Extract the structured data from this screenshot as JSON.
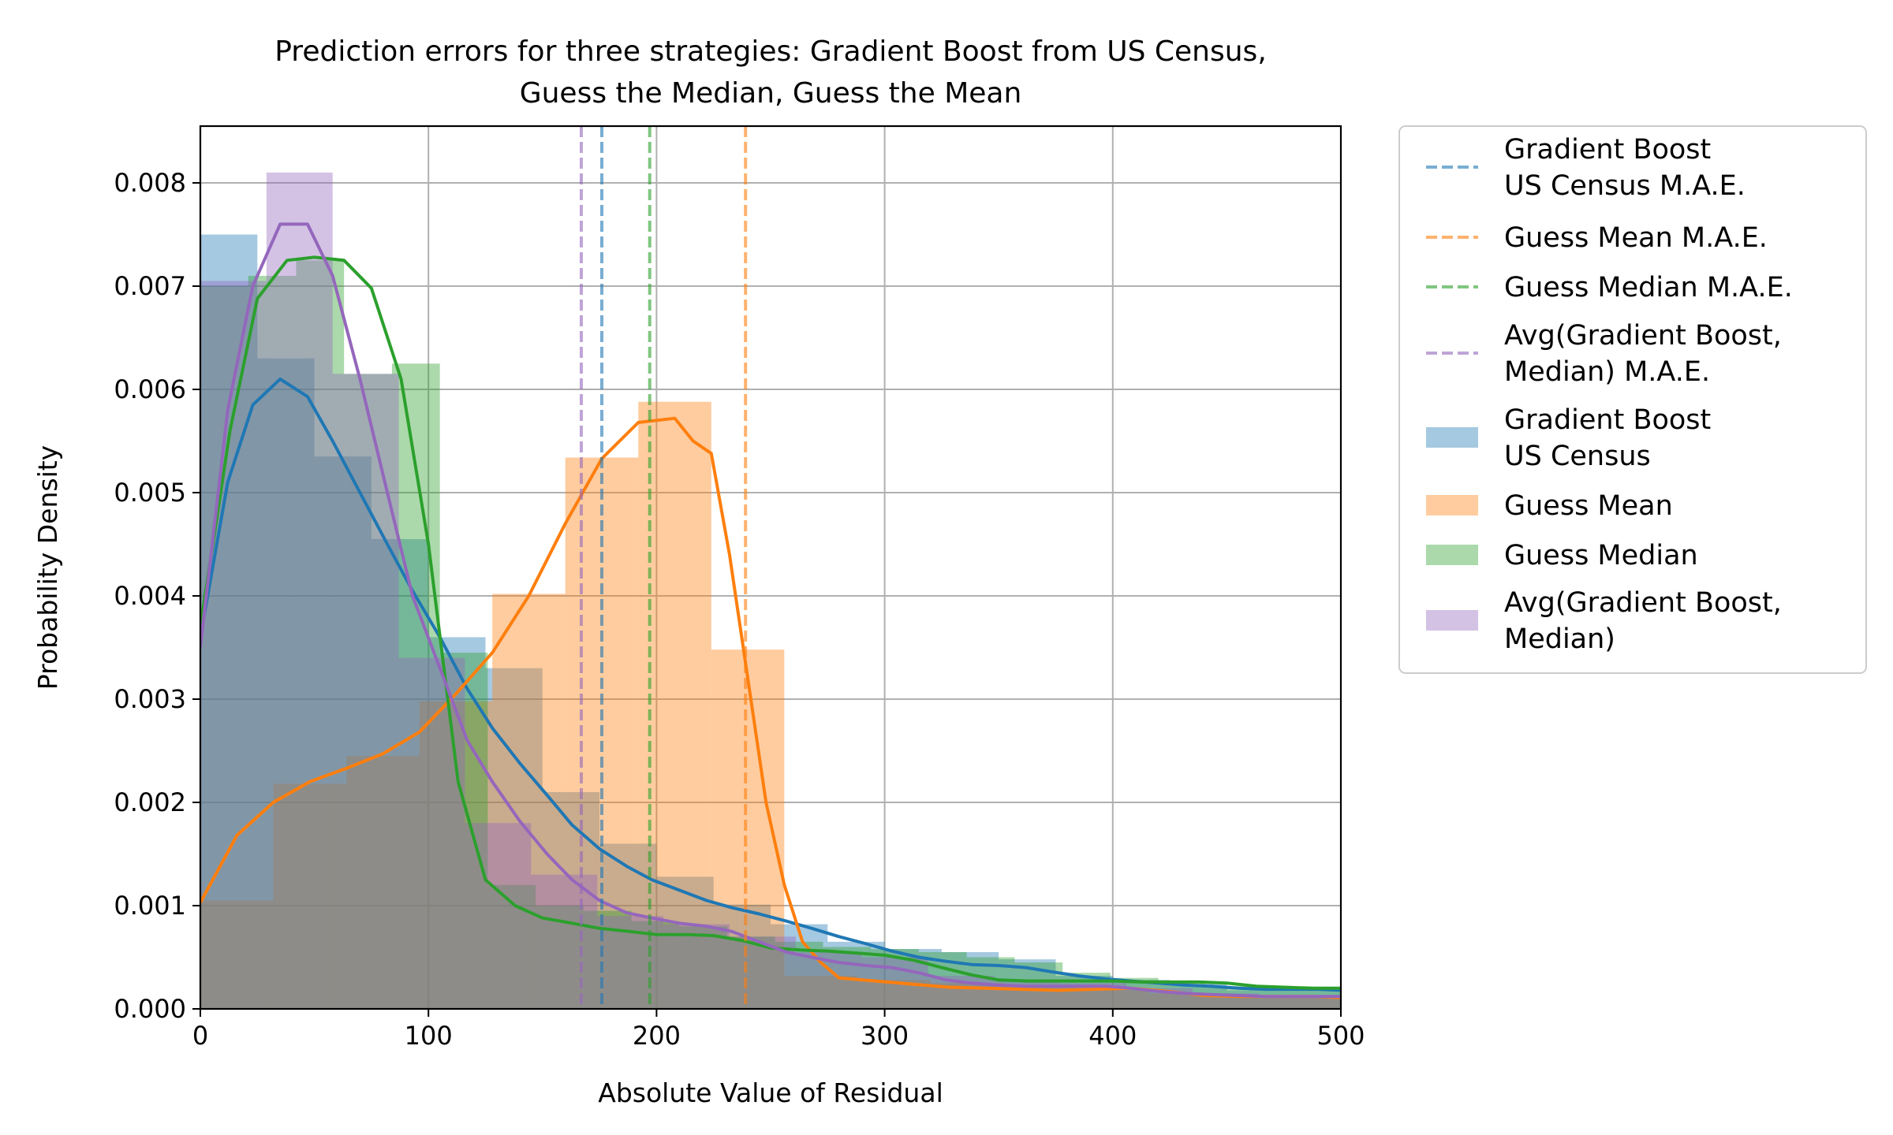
{
  "chart_data": {
    "type": "histogram",
    "title_line1": "Prediction errors for three strategies: Gradient Boost from US Census,",
    "title_line2": "Guess the Median, Guess the Mean",
    "xlabel": "Absolute Value of Residual",
    "ylabel": "Probability Density",
    "xlim": [
      0,
      500
    ],
    "ylim": [
      0,
      0.00855
    ],
    "xticks": [
      0,
      100,
      200,
      300,
      400,
      500
    ],
    "xtick_labels": [
      "0",
      "100",
      "200",
      "300",
      "400",
      "500"
    ],
    "yticks": [
      0,
      0.001,
      0.002,
      0.003,
      0.004,
      0.005,
      0.006,
      0.007,
      0.008
    ],
    "ytick_labels": [
      "0.000",
      "0.001",
      "0.002",
      "0.003",
      "0.004",
      "0.005",
      "0.006",
      "0.007",
      "0.008"
    ],
    "grid": true,
    "legend_position": "outside right",
    "colors": {
      "gradient_boost": "#1f77b4",
      "guess_mean": "#ff7f0e",
      "guess_median": "#2ca02c",
      "avg": "#9467bd"
    },
    "mae_lines": [
      {
        "series": "gradient_boost",
        "x": 176
      },
      {
        "series": "guess_mean",
        "x": 239
      },
      {
        "series": "guess_median",
        "x": 197
      },
      {
        "series": "avg",
        "x": 167
      }
    ],
    "histograms": [
      {
        "series": "gradient_boost",
        "edges": [
          0,
          25,
          50,
          75,
          100,
          125,
          150,
          175,
          200,
          225,
          250,
          275,
          300,
          325,
          350,
          375,
          400,
          425,
          450,
          475,
          500
        ],
        "values": [
          0.0075,
          0.0063,
          0.00535,
          0.00455,
          0.0036,
          0.0033,
          0.0021,
          0.0016,
          0.00128,
          0.00101,
          0.00082,
          0.00065,
          0.00058,
          0.00055,
          0.00048,
          0.00032,
          0.00028,
          0.00024,
          0.00018,
          0.0002
        ]
      },
      {
        "series": "guess_mean",
        "edges": [
          0,
          32,
          64,
          96,
          128,
          160,
          192,
          224,
          256,
          288,
          320,
          352,
          384,
          416,
          448,
          480,
          500
        ],
        "values": [
          0.00105,
          0.00218,
          0.00245,
          0.00298,
          0.00402,
          0.00534,
          0.00588,
          0.00348,
          0.00032,
          0.00028,
          0.00025,
          0.00022,
          0.00018,
          0.00015,
          0.00012,
          0.00012
        ]
      },
      {
        "series": "guess_median",
        "edges": [
          0,
          21,
          42,
          63,
          84,
          105,
          126,
          147,
          168,
          189,
          210,
          231,
          252,
          273,
          294,
          315,
          336,
          357,
          378,
          399,
          420,
          441,
          462,
          483,
          500
        ],
        "values": [
          0.007,
          0.0071,
          0.00725,
          0.00615,
          0.00625,
          0.00345,
          0.0012,
          0.001,
          0.00095,
          0.00085,
          0.0008,
          0.0007,
          0.00065,
          0.0006,
          0.00058,
          0.00055,
          0.0005,
          0.00045,
          0.00035,
          0.0003,
          0.00025,
          0.00022,
          0.0002,
          0.00018
        ]
      },
      {
        "series": "avg",
        "edges": [
          0,
          29,
          58,
          87,
          116,
          145,
          174,
          203,
          232,
          261,
          290,
          319,
          348,
          377,
          406,
          435,
          464,
          493,
          500
        ],
        "values": [
          0.00705,
          0.0081,
          0.00615,
          0.0034,
          0.0018,
          0.0013,
          0.0009,
          0.00082,
          0.0007,
          0.00055,
          0.0005,
          0.00032,
          0.00028,
          0.00025,
          0.0002,
          0.00015,
          0.00012,
          0.0001
        ]
      }
    ],
    "kde_lines": [
      {
        "series": "gradient_boost",
        "x": [
          0,
          12,
          23,
          35,
          47,
          58,
          70,
          82,
          93,
          105,
          117,
          128,
          140,
          152,
          163,
          175,
          187,
          198,
          210,
          222,
          233,
          245,
          257,
          268,
          280,
          292,
          303,
          315,
          327,
          338,
          350,
          362,
          373,
          385,
          397,
          408,
          420,
          432,
          443,
          455,
          467,
          478,
          490,
          500
        ],
        "y": [
          0.0036,
          0.0051,
          0.00585,
          0.0061,
          0.00593,
          0.0055,
          0.005,
          0.0045,
          0.00405,
          0.0036,
          0.0031,
          0.00272,
          0.00238,
          0.00207,
          0.00178,
          0.00155,
          0.00138,
          0.00125,
          0.00115,
          0.00105,
          0.00098,
          0.00092,
          0.00085,
          0.00078,
          0.0007,
          0.00063,
          0.00056,
          0.0005,
          0.00046,
          0.00043,
          0.00042,
          0.0004,
          0.00036,
          0.00032,
          0.00029,
          0.00027,
          0.00025,
          0.00023,
          0.00022,
          0.0002,
          0.00019,
          0.00019,
          0.00019,
          0.00018
        ]
      },
      {
        "series": "guess_mean",
        "x": [
          0,
          16,
          32,
          48,
          64,
          80,
          96,
          112,
          128,
          144,
          160,
          176,
          192,
          208,
          216,
          224,
          232,
          240,
          248,
          256,
          264,
          272,
          280,
          296,
          312,
          328,
          344,
          360,
          376,
          392,
          408,
          424,
          440,
          456,
          472,
          488,
          500
        ],
        "y": [
          0.00103,
          0.00168,
          0.002,
          0.0022,
          0.00233,
          0.00247,
          0.00268,
          0.00305,
          0.00345,
          0.004,
          0.0047,
          0.00533,
          0.00568,
          0.00572,
          0.0055,
          0.00538,
          0.0044,
          0.0032,
          0.002,
          0.0012,
          0.00065,
          0.00045,
          0.0003,
          0.00027,
          0.00024,
          0.00021,
          0.0002,
          0.00019,
          0.00018,
          0.00019,
          0.0002,
          0.00017,
          0.00013,
          0.00012,
          0.00012,
          0.00012,
          0.00011
        ]
      },
      {
        "series": "guess_median",
        "x": [
          0,
          13,
          25,
          38,
          50,
          63,
          75,
          88,
          100,
          113,
          125,
          138,
          150,
          163,
          175,
          188,
          200,
          213,
          225,
          238,
          250,
          263,
          275,
          288,
          300,
          313,
          325,
          338,
          350,
          363,
          375,
          388,
          400,
          413,
          425,
          438,
          450,
          463,
          475,
          488,
          500
        ],
        "y": [
          0.0037,
          0.0056,
          0.00688,
          0.00725,
          0.00728,
          0.00725,
          0.00698,
          0.0061,
          0.0045,
          0.0022,
          0.00125,
          0.001,
          0.00088,
          0.00083,
          0.00078,
          0.00075,
          0.00072,
          0.00072,
          0.00071,
          0.00066,
          0.00059,
          0.00057,
          0.00056,
          0.00054,
          0.00052,
          0.00047,
          0.0004,
          0.00033,
          0.00028,
          0.00027,
          0.00027,
          0.00027,
          0.00027,
          0.00026,
          0.00026,
          0.00026,
          0.00025,
          0.00022,
          0.00021,
          0.0002,
          0.0002
        ]
      },
      {
        "series": "avg",
        "x": [
          0,
          12,
          23,
          35,
          47,
          58,
          70,
          82,
          93,
          105,
          117,
          128,
          140,
          152,
          163,
          175,
          187,
          198,
          210,
          222,
          233,
          245,
          257,
          268,
          280,
          292,
          303,
          315,
          327,
          338,
          350,
          362,
          373,
          385,
          397,
          408,
          420,
          432,
          443,
          455,
          467,
          478,
          490,
          500
        ],
        "y": [
          0.0035,
          0.0058,
          0.007,
          0.0076,
          0.0076,
          0.0071,
          0.0061,
          0.005,
          0.004,
          0.0033,
          0.0026,
          0.0022,
          0.00182,
          0.0015,
          0.00125,
          0.00105,
          0.00093,
          0.00088,
          0.00083,
          0.0008,
          0.00075,
          0.00065,
          0.00055,
          0.0005,
          0.00045,
          0.00042,
          0.0004,
          0.00035,
          0.00028,
          0.00025,
          0.00023,
          0.00022,
          0.00022,
          0.00022,
          0.00022,
          0.0002,
          0.00017,
          0.00015,
          0.00014,
          0.00013,
          0.00012,
          0.00012,
          0.00012,
          0.00012
        ]
      }
    ],
    "legend": [
      {
        "series": "gradient_boost",
        "kind": "line",
        "label1": "Gradient Boost",
        "label2": "US Census M.A.E."
      },
      {
        "series": "guess_mean",
        "kind": "line",
        "label1": "Guess Mean M.A.E.",
        "label2": ""
      },
      {
        "series": "guess_median",
        "kind": "line",
        "label1": "Guess Median M.A.E.",
        "label2": ""
      },
      {
        "series": "avg",
        "kind": "line",
        "label1": "Avg(Gradient Boost,",
        "label2": "Median) M.A.E."
      },
      {
        "series": "gradient_boost",
        "kind": "patch",
        "label1": "Gradient Boost",
        "label2": "US Census"
      },
      {
        "series": "guess_mean",
        "kind": "patch",
        "label1": "Guess Mean",
        "label2": ""
      },
      {
        "series": "guess_median",
        "kind": "patch",
        "label1": "Guess Median",
        "label2": ""
      },
      {
        "series": "avg",
        "kind": "patch",
        "label1": "Avg(Gradient Boost,",
        "label2": "Median)"
      }
    ]
  }
}
